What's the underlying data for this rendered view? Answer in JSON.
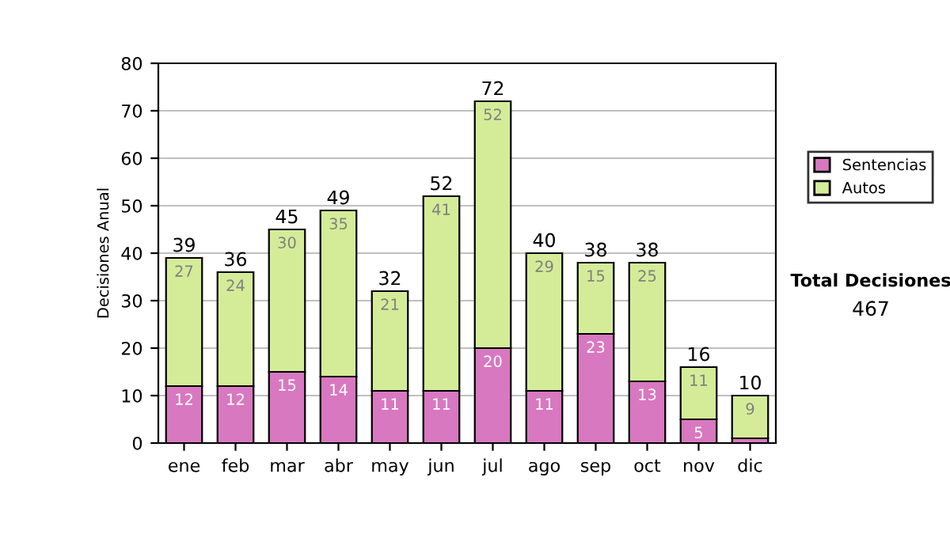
{
  "chart_data": {
    "type": "bar",
    "stacked": true,
    "ylabel": "Decisiones Anual",
    "categories": [
      "ene",
      "feb",
      "mar",
      "abr",
      "may",
      "jun",
      "jul",
      "ago",
      "sep",
      "oct",
      "nov",
      "dic"
    ],
    "series": [
      {
        "name": "Sentencias",
        "color": "#d878c0",
        "values": [
          12,
          12,
          15,
          14,
          11,
          11,
          20,
          11,
          23,
          13,
          5,
          1
        ],
        "value_labels": [
          "12",
          "12",
          "15",
          "14",
          "11",
          "11",
          "20",
          "11",
          "23",
          "13",
          "5",
          null
        ]
      },
      {
        "name": "Autos",
        "color": "#d4ec98",
        "values": [
          27,
          24,
          30,
          35,
          21,
          41,
          52,
          29,
          15,
          25,
          11,
          9
        ],
        "value_labels": [
          "27",
          "24",
          "30",
          "35",
          "21",
          "41",
          "52",
          "29",
          "15",
          "25",
          "11",
          "9"
        ]
      }
    ],
    "totals": [
      "39",
      "36",
      "45",
      "49",
      "32",
      "52",
      "72",
      "40",
      "38",
      "38",
      "16",
      "10"
    ],
    "ylim": [
      0,
      80
    ],
    "yticks": [
      0,
      10,
      20,
      30,
      40,
      50,
      60,
      70,
      80
    ],
    "grid": "y",
    "legend": "right",
    "annotations": [
      "Total Decisiones",
      "467"
    ]
  }
}
